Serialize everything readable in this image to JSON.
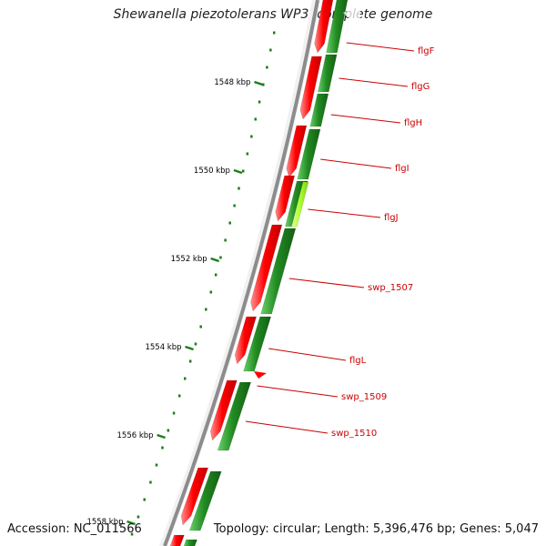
{
  "header": {
    "title": "Shewanella piezotolerans WP3, complete genome"
  },
  "footer": {
    "accession": "Accession: NC_011566",
    "summary": "Topology: circular; Length: 5,396,476 bp; Genes: 5,047"
  },
  "ruler": {
    "ticks": [
      "1548 kbp",
      "1550 kbp",
      "1552 kbp",
      "1554 kbp",
      "1556 kbp",
      "1558 kbp"
    ]
  },
  "genes": [
    {
      "name": "flgF"
    },
    {
      "name": "flgG"
    },
    {
      "name": "flgH"
    },
    {
      "name": "flgI"
    },
    {
      "name": "flgJ"
    },
    {
      "name": "swp_1507"
    },
    {
      "name": "flgL"
    },
    {
      "name": "swp_1509"
    },
    {
      "name": "swp_1510"
    }
  ],
  "colors": {
    "forward_track": "#ff0000",
    "reverse_track": "#228b22",
    "highlight_gene": "#adff2f",
    "backbone": "#8c8c8c",
    "tick": "#1a7f1a",
    "label": "#cc0000"
  }
}
